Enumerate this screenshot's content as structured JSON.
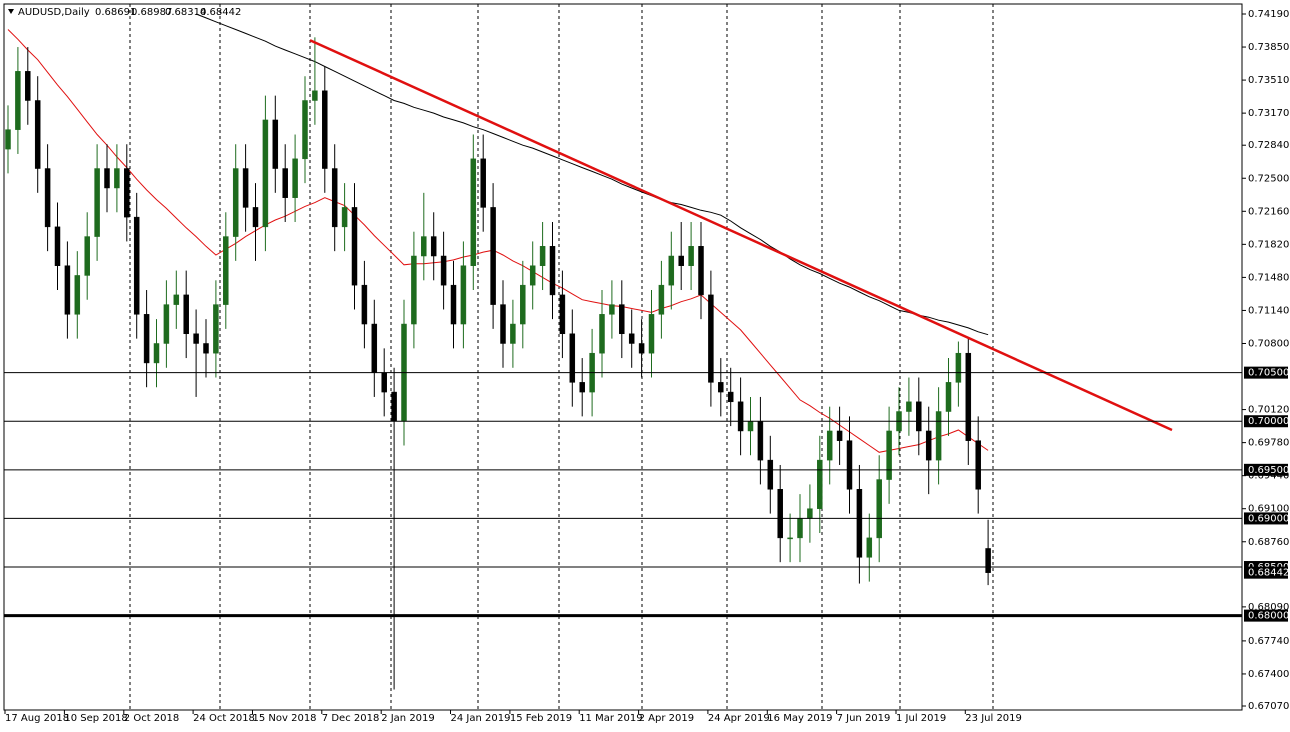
{
  "chart_data": {
    "type": "candlestick",
    "title": "AUDUSD,Daily",
    "ohlc": [
      {
        "value": 0.68691,
        "label": "0.68691"
      },
      {
        "value": 0.68987,
        "label": "0.68987"
      },
      {
        "value": 0.68314,
        "label": "0.68314"
      },
      {
        "value": 0.68442,
        "label": "0.68442"
      }
    ],
    "categories": [
      "17 Aug 2018",
      null,
      null,
      null,
      null,
      null,
      "10 Sep 2018",
      null,
      null,
      null,
      null,
      null,
      "2 Oct 2018",
      null,
      null,
      null,
      null,
      null,
      null,
      "24 Oct 2018",
      null,
      null,
      null,
      null,
      null,
      "15 Nov 2018",
      null,
      null,
      null,
      null,
      null,
      null,
      "7 Dec 2018",
      null,
      null,
      null,
      null,
      null,
      "2 Jan 2019",
      null,
      null,
      null,
      null,
      null,
      null,
      "24 Jan 2019",
      null,
      null,
      null,
      null,
      null,
      "15 Feb 2019",
      null,
      null,
      null,
      null,
      null,
      null,
      "11 Mar 2019",
      null,
      null,
      null,
      null,
      null,
      "2 Apr 2019",
      null,
      null,
      null,
      null,
      null,
      null,
      "24 Apr 2019",
      null,
      null,
      null,
      null,
      null,
      "16 May 2019",
      null,
      null,
      null,
      null,
      null,
      null,
      "7 Jun 2019",
      null,
      null,
      null,
      null,
      null,
      "1 Jul 2019",
      null,
      null,
      null,
      null,
      null,
      null,
      "23 Jul 2019",
      null,
      null
    ],
    "open": [
      0.728,
      0.73,
      0.736,
      0.733,
      0.726,
      0.72,
      0.716,
      0.711,
      0.715,
      0.719,
      0.726,
      0.724,
      0.726,
      0.721,
      0.711,
      0.706,
      0.708,
      0.712,
      0.713,
      0.709,
      0.708,
      0.707,
      0.712,
      0.719,
      0.726,
      0.722,
      0.72,
      0.731,
      0.726,
      0.723,
      0.727,
      0.733,
      0.734,
      0.726,
      0.72,
      0.722,
      0.714,
      0.71,
      0.705,
      0.703,
      0.7,
      0.71,
      0.717,
      0.719,
      0.717,
      0.714,
      0.71,
      0.716,
      0.727,
      0.722,
      0.712,
      0.708,
      0.71,
      0.714,
      0.716,
      0.718,
      0.713,
      0.709,
      0.704,
      0.703,
      0.707,
      0.711,
      0.712,
      0.709,
      0.708,
      0.707,
      0.711,
      0.714,
      0.717,
      0.716,
      0.718,
      0.713,
      0.704,
      0.703,
      0.702,
      0.699,
      0.7,
      0.696,
      0.693,
      0.688,
      0.688,
      0.69,
      0.691,
      0.696,
      0.699,
      0.698,
      0.693,
      0.686,
      0.688,
      0.694,
      0.699,
      0.701,
      0.702,
      0.699,
      0.696,
      0.701,
      0.704,
      0.707,
      0.698,
      0.68691
    ],
    "high": [
      0.7325,
      0.7385,
      0.7385,
      0.7355,
      0.7285,
      0.7225,
      0.7185,
      0.7175,
      0.7215,
      0.7285,
      0.7285,
      0.7285,
      0.7285,
      0.7235,
      0.7135,
      0.7105,
      0.7145,
      0.7155,
      0.7155,
      0.7115,
      0.7105,
      0.7145,
      0.7215,
      0.7285,
      0.7285,
      0.7245,
      0.7335,
      0.7335,
      0.7285,
      0.7295,
      0.7355,
      0.7395,
      0.7365,
      0.7285,
      0.7245,
      0.7245,
      0.7165,
      0.7125,
      0.7075,
      0.7055,
      0.7125,
      0.7195,
      0.7235,
      0.7215,
      0.7195,
      0.7165,
      0.7185,
      0.7295,
      0.7295,
      0.7245,
      0.7145,
      0.7125,
      0.7165,
      0.7185,
      0.7205,
      0.7205,
      0.7155,
      0.7115,
      0.7065,
      0.7095,
      0.7135,
      0.7145,
      0.7145,
      0.7115,
      0.7105,
      0.7135,
      0.7165,
      0.7195,
      0.7205,
      0.7205,
      0.7205,
      0.7155,
      0.7065,
      0.7055,
      0.7045,
      0.7025,
      0.7025,
      0.6985,
      0.6955,
      0.6905,
      0.6925,
      0.6935,
      0.6985,
      0.7015,
      0.7015,
      0.7005,
      0.6955,
      0.6905,
      0.6965,
      0.7015,
      0.7035,
      0.7045,
      0.7045,
      0.7015,
      0.7035,
      0.7065,
      0.7082,
      0.7085,
      0.7005,
      0.68987
    ],
    "low": [
      0.7255,
      0.7275,
      0.7305,
      0.7235,
      0.7175,
      0.7135,
      0.7085,
      0.7085,
      0.7125,
      0.7165,
      0.7215,
      0.7215,
      0.7185,
      0.7085,
      0.7035,
      0.7035,
      0.7055,
      0.7095,
      0.7065,
      0.7025,
      0.7045,
      0.7045,
      0.7095,
      0.7165,
      0.7195,
      0.7165,
      0.7175,
      0.7235,
      0.7205,
      0.7205,
      0.7245,
      0.7305,
      0.7235,
      0.7175,
      0.7175,
      0.7115,
      0.7075,
      0.7025,
      0.7005,
      0.6724,
      0.6975,
      0.7075,
      0.7145,
      0.7145,
      0.7115,
      0.7075,
      0.7075,
      0.7135,
      0.7195,
      0.7095,
      0.7055,
      0.7055,
      0.7075,
      0.7115,
      0.7135,
      0.7105,
      0.7065,
      0.7015,
      0.7005,
      0.7005,
      0.7045,
      0.7085,
      0.7065,
      0.7055,
      0.7045,
      0.7045,
      0.7085,
      0.7115,
      0.7135,
      0.7135,
      0.7105,
      0.7015,
      0.7005,
      0.6995,
      0.6965,
      0.6965,
      0.6935,
      0.6905,
      0.6855,
      0.6855,
      0.6855,
      0.6875,
      0.6885,
      0.6935,
      0.6955,
      0.6905,
      0.6833,
      0.6835,
      0.6855,
      0.6915,
      0.6965,
      0.6985,
      0.6965,
      0.6925,
      0.6935,
      0.6985,
      0.7015,
      0.6955,
      0.6905,
      0.68314
    ],
    "close": [
      0.73,
      0.736,
      0.733,
      0.726,
      0.72,
      0.716,
      0.711,
      0.715,
      0.719,
      0.726,
      0.724,
      0.726,
      0.721,
      0.711,
      0.706,
      0.708,
      0.712,
      0.713,
      0.709,
      0.708,
      0.707,
      0.712,
      0.719,
      0.726,
      0.722,
      0.72,
      0.731,
      0.726,
      0.723,
      0.727,
      0.733,
      0.734,
      0.726,
      0.72,
      0.722,
      0.714,
      0.71,
      0.705,
      0.703,
      0.7,
      0.71,
      0.717,
      0.719,
      0.717,
      0.714,
      0.71,
      0.716,
      0.727,
      0.722,
      0.712,
      0.708,
      0.71,
      0.714,
      0.716,
      0.718,
      0.713,
      0.709,
      0.704,
      0.703,
      0.707,
      0.711,
      0.712,
      0.709,
      0.708,
      0.707,
      0.711,
      0.714,
      0.717,
      0.716,
      0.718,
      0.713,
      0.704,
      0.703,
      0.702,
      0.699,
      0.7,
      0.696,
      0.693,
      0.688,
      0.688,
      0.69,
      0.691,
      0.696,
      0.699,
      0.698,
      0.693,
      0.686,
      0.688,
      0.694,
      0.699,
      0.701,
      0.702,
      0.699,
      0.696,
      0.701,
      0.704,
      0.707,
      0.698,
      0.693,
      0.68442
    ],
    "up_color": "#1e6b1e",
    "down_color": "#000000",
    "ma_lines": [
      {
        "color": "#e01010",
        "values": [
          0.7403,
          0.7393,
          0.7382,
          0.7372,
          0.7359,
          0.7346,
          0.7334,
          0.7321,
          0.7308,
          0.7295,
          0.7284,
          0.7272,
          0.7261,
          0.7249,
          0.7238,
          0.7228,
          0.7219,
          0.7209,
          0.7199,
          0.719,
          0.718,
          0.7171,
          0.7177,
          0.7183,
          0.719,
          0.7196,
          0.7202,
          0.7207,
          0.7211,
          0.7216,
          0.7221,
          0.7225,
          0.723,
          0.7226,
          0.7222,
          0.7212,
          0.7202,
          0.7191,
          0.7181,
          0.7171,
          0.7161,
          0.7162,
          0.7162,
          0.7163,
          0.7164,
          0.7166,
          0.7169,
          0.7171,
          0.7174,
          0.7176,
          0.7171,
          0.7165,
          0.716,
          0.7154,
          0.7148,
          0.7142,
          0.7137,
          0.7131,
          0.7125,
          0.7123,
          0.7121,
          0.7119,
          0.7118,
          0.7116,
          0.7114,
          0.7112,
          0.7116,
          0.7119,
          0.7123,
          0.7126,
          0.713,
          0.7121,
          0.7112,
          0.7103,
          0.7094,
          0.7082,
          0.707,
          0.7058,
          0.7046,
          0.7034,
          0.7022,
          0.7016,
          0.7009,
          0.7003,
          0.6996,
          0.6989,
          0.6982,
          0.6975,
          0.6968,
          0.697,
          0.6972,
          0.6974,
          0.6976,
          0.698,
          0.6984,
          0.6987,
          0.6991,
          0.6984,
          0.6977,
          0.697
        ]
      },
      {
        "color": "#000000",
        "values": [
          null,
          null,
          null,
          null,
          null,
          null,
          null,
          null,
          null,
          null,
          null,
          null,
          null,
          null,
          null,
          null,
          null,
          null,
          null,
          0.7419,
          0.7415,
          0.7411,
          0.7407,
          0.7403,
          0.7399,
          0.7395,
          0.7391,
          0.7386,
          0.7382,
          0.7378,
          0.7374,
          0.737,
          0.7365,
          0.736,
          0.7355,
          0.735,
          0.7345,
          0.734,
          0.7335,
          0.733,
          0.7327,
          0.7323,
          0.732,
          0.7317,
          0.7313,
          0.731,
          0.7307,
          0.7303,
          0.73,
          0.7296,
          0.7292,
          0.7288,
          0.7284,
          0.7281,
          0.7277,
          0.7273,
          0.7269,
          0.7265,
          0.7261,
          0.7257,
          0.7253,
          0.7249,
          0.7244,
          0.724,
          0.7236,
          0.7232,
          0.7228,
          0.7225,
          0.7223,
          0.722,
          0.7217,
          0.7215,
          0.7212,
          0.7206,
          0.7199,
          0.7193,
          0.7187,
          0.718,
          0.7174,
          0.7167,
          0.7161,
          0.7156,
          0.7152,
          0.7147,
          0.7142,
          0.7138,
          0.7133,
          0.7128,
          0.7124,
          0.7119,
          0.7114,
          0.7112,
          0.7109,
          0.7107,
          0.7104,
          0.7102,
          0.7099,
          0.7096,
          0.7092,
          0.7089
        ]
      }
    ],
    "trendline": {
      "color": "#e01010",
      "values": [
        0.7392,
        0.6991
      ]
    },
    "levels": [
      {
        "value": 0.705,
        "label": "0.70500"
      },
      {
        "value": 0.7,
        "label": "0.70000"
      },
      {
        "value": 0.695,
        "label": "0.69500"
      },
      {
        "value": 0.69,
        "label": "0.69000"
      },
      {
        "value": 0.685,
        "label": "0.68500"
      },
      {
        "value": 0.68,
        "label": "0.68000"
      }
    ],
    "ylim": [
      0.67029,
      0.74334
    ],
    "yticks": [
      {
        "value": 0.7419,
        "label": "0.74190"
      },
      {
        "value": 0.7385,
        "label": "0.73850"
      },
      {
        "value": 0.7351,
        "label": "0.73510"
      },
      {
        "value": 0.7317,
        "label": "0.73170"
      },
      {
        "value": 0.7284,
        "label": "0.72840"
      },
      {
        "value": 0.725,
        "label": "0.72500"
      },
      {
        "value": 0.7216,
        "label": "0.72160"
      },
      {
        "value": 0.7182,
        "label": "0.71820"
      },
      {
        "value": 0.7148,
        "label": "0.71480"
      },
      {
        "value": 0.7114,
        "label": "0.71140"
      },
      {
        "value": 0.708,
        "label": "0.70800"
      },
      {
        "value": 0.7012,
        "label": "0.70120"
      },
      {
        "value": 0.6978,
        "label": "0.69780"
      },
      {
        "value": 0.6944,
        "label": "0.69440"
      },
      {
        "value": 0.691,
        "label": "0.69100"
      },
      {
        "value": 0.6876,
        "label": "0.68760"
      },
      {
        "value": 0.6809,
        "label": "0.68090"
      },
      {
        "value": 0.6774,
        "label": "0.67740"
      },
      {
        "value": 0.674,
        "label": "0.67400"
      },
      {
        "value": 0.6707,
        "label": "0.67070"
      }
    ]
  }
}
